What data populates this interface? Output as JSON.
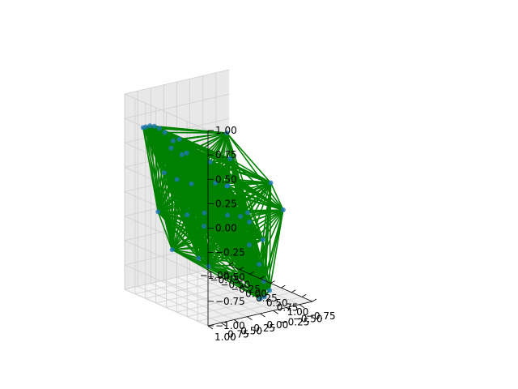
{
  "chart_data": {
    "type": "scatter",
    "projection": "3d",
    "edges": "complete-graph",
    "edge_color": "#008000",
    "marker_color": "#1f77b4",
    "pane_color": "#f2f2f2",
    "grid": true,
    "title": "",
    "xlabel": "",
    "ylabel": "",
    "zlabel": "",
    "xlim": [
      -1,
      1
    ],
    "ylim": [
      -1,
      1
    ],
    "zlim": [
      -1,
      1
    ],
    "x_ticks": [
      "−1.00",
      "−0.75",
      "−0.50",
      "−0.25",
      "0.00",
      "0.25",
      "0.50",
      "0.75",
      "1.00"
    ],
    "y_ticks": [
      "−0.75",
      "−0.50",
      "−0.25",
      "0.00",
      "0.25",
      "0.50",
      "0.75",
      "1.00"
    ],
    "z_ticks": [
      "−1.00",
      "−0.75",
      "−0.50",
      "−0.25",
      "0.00",
      "0.25",
      "0.50",
      "0.75",
      "1.00"
    ],
    "points": [
      {
        "x": -1.0,
        "y": 0.0,
        "z": 0.0
      },
      {
        "x": -0.62,
        "y": 0.95,
        "z": 0.72
      },
      {
        "x": -0.52,
        "y": 0.98,
        "z": 0.75
      },
      {
        "x": -0.42,
        "y": 0.98,
        "z": 0.78
      },
      {
        "x": -0.3,
        "y": 0.99,
        "z": 0.8
      },
      {
        "x": -0.18,
        "y": 0.99,
        "z": 0.8
      },
      {
        "x": -0.06,
        "y": 0.98,
        "z": 0.78
      },
      {
        "x": 0.1,
        "y": 0.95,
        "z": 0.72
      },
      {
        "x": 0.25,
        "y": 0.9,
        "z": 0.6
      },
      {
        "x": 0.3,
        "y": 0.85,
        "z": 0.62
      },
      {
        "x": 0.95,
        "y": 0.2,
        "z": 0.05
      },
      {
        "x": 1.0,
        "y": -0.05,
        "z": -0.25
      },
      {
        "x": 1.0,
        "y": 0.0,
        "z": -0.85
      },
      {
        "x": 0.85,
        "y": -0.2,
        "z": -0.88
      },
      {
        "x": 0.6,
        "y": -0.5,
        "z": -0.9
      },
      {
        "x": 0.4,
        "y": -0.55,
        "z": -0.85
      },
      {
        "x": 0.1,
        "y": -0.7,
        "z": -0.75
      },
      {
        "x": -0.45,
        "y": -0.95,
        "z": -0.45
      },
      {
        "x": -0.85,
        "y": -0.4,
        "z": -0.5
      },
      {
        "x": -0.9,
        "y": -0.2,
        "z": -0.05
      },
      {
        "x": -0.95,
        "y": 0.15,
        "z": 0.35
      },
      {
        "x": -0.5,
        "y": 0.35,
        "z": 0.55
      },
      {
        "x": 0.05,
        "y": 0.2,
        "z": 0.4
      },
      {
        "x": 0.35,
        "y": 0.1,
        "z": 0.2
      },
      {
        "x": -0.2,
        "y": -0.1,
        "z": 0.1
      },
      {
        "x": 0.15,
        "y": -0.3,
        "z": -0.2
      },
      {
        "x": -0.35,
        "y": -0.45,
        "z": -0.3
      },
      {
        "x": 0.55,
        "y": -0.15,
        "z": -0.4
      },
      {
        "x": 0.7,
        "y": 0.4,
        "z": 0.3
      },
      {
        "x": -0.7,
        "y": 0.6,
        "z": -0.2
      },
      {
        "x": 0.0,
        "y": 0.6,
        "z": -0.1
      },
      {
        "x": 0.45,
        "y": 0.55,
        "z": -0.55
      },
      {
        "x": -0.1,
        "y": 0.3,
        "z": -0.6
      },
      {
        "x": -0.6,
        "y": -0.7,
        "z": 0.2
      },
      {
        "x": 0.25,
        "y": -0.8,
        "z": 0.1
      },
      {
        "x": 0.8,
        "y": -0.6,
        "z": -0.05
      },
      {
        "x": -0.3,
        "y": 0.8,
        "z": 0.3
      },
      {
        "x": 0.6,
        "y": 0.75,
        "z": 0.05
      },
      {
        "x": -0.8,
        "y": 0.25,
        "z": -0.65
      },
      {
        "x": 0.2,
        "y": 0.0,
        "z": 0.7
      }
    ]
  }
}
